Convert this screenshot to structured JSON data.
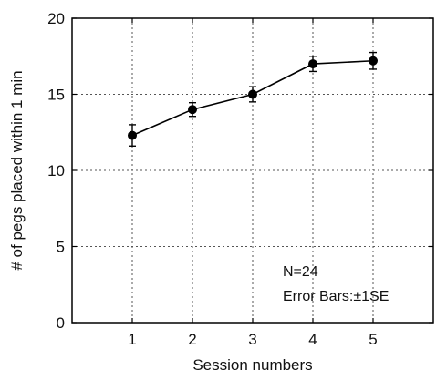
{
  "chart_data": {
    "type": "line",
    "xlabel": "Session numbers",
    "ylabel": "# of pegs placed within 1 min",
    "x": [
      1,
      2,
      3,
      4,
      5
    ],
    "series": [
      {
        "values": [
          12.3,
          14.0,
          15.0,
          17.0,
          17.2
        ],
        "error": [
          0.7,
          0.45,
          0.5,
          0.5,
          0.55
        ]
      }
    ],
    "xlim": [
      0,
      6
    ],
    "ylim": [
      0,
      20
    ],
    "xticks": [
      "1",
      "2",
      "3",
      "4",
      "5"
    ],
    "yticks": [
      "0",
      "5",
      "10",
      "15",
      "20"
    ],
    "grid": true,
    "annotations": [
      "N=24",
      "Error Bars:±1SE"
    ],
    "line_color": "#000000"
  }
}
